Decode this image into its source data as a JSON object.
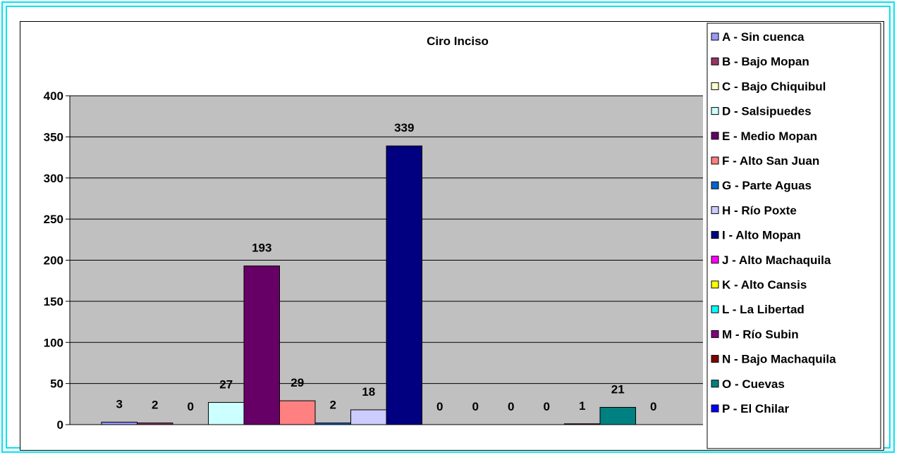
{
  "chart_data": {
    "type": "bar",
    "title": "Ciro Inciso",
    "xlabel": "",
    "ylabel": "",
    "ylim": [
      0,
      400
    ],
    "yticks": [
      0,
      50,
      100,
      150,
      200,
      250,
      300,
      350,
      400
    ],
    "grid": true,
    "plot_background": "#c0c0c0",
    "legend_position": "right",
    "series": [
      {
        "name": "A - Sin cuenca",
        "value": 3,
        "label": "3",
        "color": "#9999ff"
      },
      {
        "name": "B - Bajo Mopan",
        "value": 2,
        "label": "2",
        "color": "#993366"
      },
      {
        "name": "C - Bajo Chiquibul",
        "value": 0,
        "label": "0",
        "color": "#ffffcc"
      },
      {
        "name": "D - Salsipuedes",
        "value": 27,
        "label": "27",
        "color": "#ccffff"
      },
      {
        "name": "E - Medio Mopan",
        "value": 193,
        "label": "193",
        "color": "#660066"
      },
      {
        "name": "F - Alto San Juan",
        "value": 29,
        "label": "29",
        "color": "#ff8080"
      },
      {
        "name": "G - Parte Aguas",
        "value": 2,
        "label": "2",
        "color": "#0066cc"
      },
      {
        "name": "H - Río Poxte",
        "value": 18,
        "label": "18",
        "color": "#ccccff"
      },
      {
        "name": "I - Alto Mopan",
        "value": 339,
        "label": "339",
        "color": "#000080"
      },
      {
        "name": "J - Alto Machaquila",
        "value": 0,
        "label": "0",
        "color": "#ff00ff"
      },
      {
        "name": "K - Alto Cansis",
        "value": 0,
        "label": "0",
        "color": "#ffff00"
      },
      {
        "name": "L - La Libertad",
        "value": 0,
        "label": "0",
        "color": "#00ffff"
      },
      {
        "name": "M - Río Subin",
        "value": 0,
        "label": "0",
        "color": "#800080"
      },
      {
        "name": "N - Bajo Machaquila",
        "value": 1,
        "label": "1",
        "color": "#800000"
      },
      {
        "name": "O - Cuevas",
        "value": 21,
        "label": "21",
        "color": "#008080"
      },
      {
        "name": "P - El Chilar",
        "value": 0,
        "label": "0",
        "color": "#0000ff"
      }
    ]
  }
}
